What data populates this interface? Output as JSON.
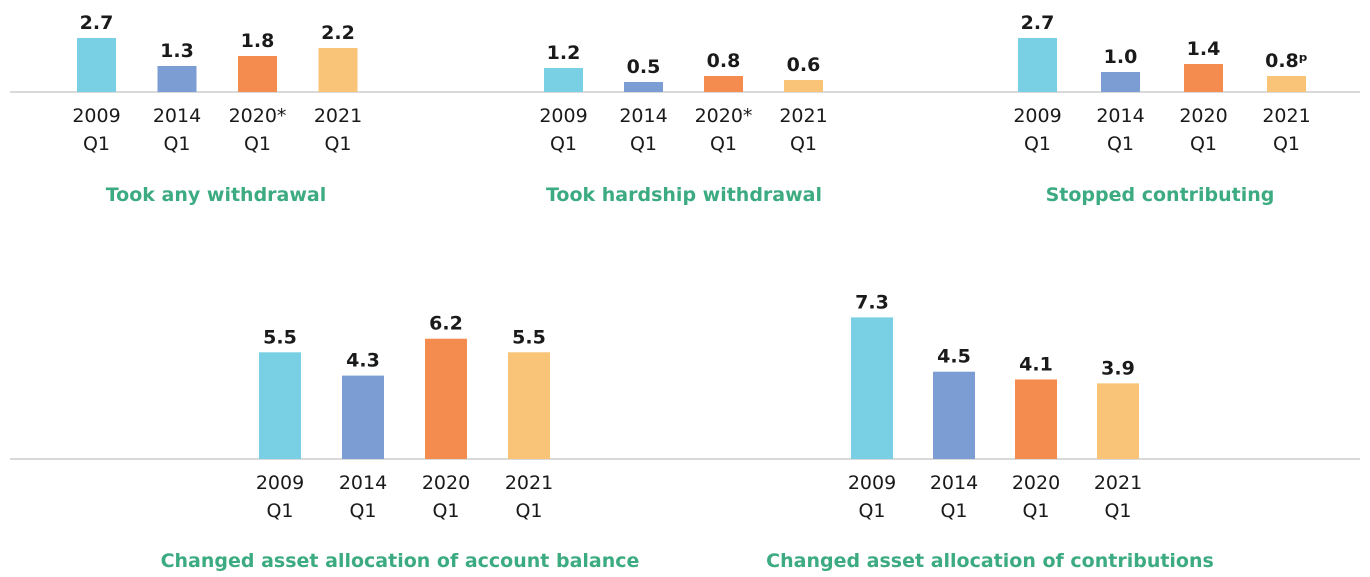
{
  "palette": {
    "series_colors": [
      "#79cfe3",
      "#7c9dd3",
      "#f38c4e",
      "#f9c378"
    ],
    "title_color": "#3dab82"
  },
  "chart_data": [
    {
      "type": "bar",
      "title": "Took any withdrawal",
      "categories": [
        [
          "2009",
          "Q1"
        ],
        [
          "2014",
          "Q1"
        ],
        [
          "2020*",
          "Q1"
        ],
        [
          "2021",
          "Q1"
        ]
      ],
      "values": [
        2.7,
        1.3,
        1.8,
        2.2
      ],
      "value_labels": [
        "2.7",
        "1.3",
        "1.8",
        "2.2"
      ]
    },
    {
      "type": "bar",
      "title": "Took hardship withdrawal",
      "categories": [
        [
          "2009",
          "Q1"
        ],
        [
          "2014",
          "Q1"
        ],
        [
          "2020*",
          "Q1"
        ],
        [
          "2021",
          "Q1"
        ]
      ],
      "values": [
        1.2,
        0.5,
        0.8,
        0.6
      ],
      "value_labels": [
        "1.2",
        "0.5",
        "0.8",
        "0.6"
      ]
    },
    {
      "type": "bar",
      "title": "Stopped contributing",
      "categories": [
        [
          "2009",
          "Q1"
        ],
        [
          "2014",
          "Q1"
        ],
        [
          "2020",
          "Q1"
        ],
        [
          "2021",
          "Q1"
        ]
      ],
      "values": [
        2.7,
        1.0,
        1.4,
        0.8
      ],
      "value_labels": [
        "2.7",
        "1.0",
        "1.4",
        "0.8ᵖ"
      ]
    },
    {
      "type": "bar",
      "title": "Changed asset allocation of account balance",
      "categories": [
        [
          "2009",
          "Q1"
        ],
        [
          "2014",
          "Q1"
        ],
        [
          "2020",
          "Q1"
        ],
        [
          "2021",
          "Q1"
        ]
      ],
      "values": [
        5.5,
        4.3,
        6.2,
        5.5
      ],
      "value_labels": [
        "5.5",
        "4.3",
        "6.2",
        "5.5"
      ]
    },
    {
      "type": "bar",
      "title": "Changed asset allocation of contributions",
      "categories": [
        [
          "2009",
          "Q1"
        ],
        [
          "2014",
          "Q1"
        ],
        [
          "2020",
          "Q1"
        ],
        [
          "2021",
          "Q1"
        ]
      ],
      "values": [
        7.3,
        4.5,
        4.1,
        3.9
      ],
      "value_labels": [
        "7.3",
        "4.5",
        "4.1",
        "3.9"
      ]
    }
  ]
}
